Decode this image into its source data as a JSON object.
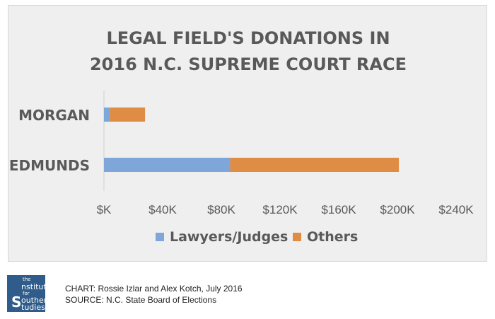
{
  "chart_data": {
    "type": "bar",
    "orientation": "horizontal",
    "stacked": true,
    "title": [
      "LEGAL FIELD'S DONATIONS IN",
      "2016 N.C. SUPREME COURT RACE"
    ],
    "categories": [
      "MORGAN",
      "EDMUNDS"
    ],
    "series": [
      {
        "name": "Lawyers/Judges",
        "values": [
          4000,
          86000
        ],
        "color": "#7ea6d8"
      },
      {
        "name": "Others",
        "values": [
          24000,
          115000
        ],
        "color": "#df8d45"
      }
    ],
    "xlim": [
      0,
      240000
    ],
    "x_ticks": [
      "$K",
      "$40K",
      "$80K",
      "$120K",
      "$160K",
      "$200K",
      "$240K"
    ],
    "grid": false,
    "legend_position": "bottom"
  },
  "footer": {
    "logo": {
      "small_top": "the",
      "line1": "nstitute",
      "small_mid": "for",
      "line2": "outhern",
      "line3": "tudies",
      "big_letter": "S"
    },
    "credit_line": "CHART: Rossie Izlar and Alex Kotch, July 2016",
    "source_line": "SOURCE: N.C. State Board of Elections"
  }
}
